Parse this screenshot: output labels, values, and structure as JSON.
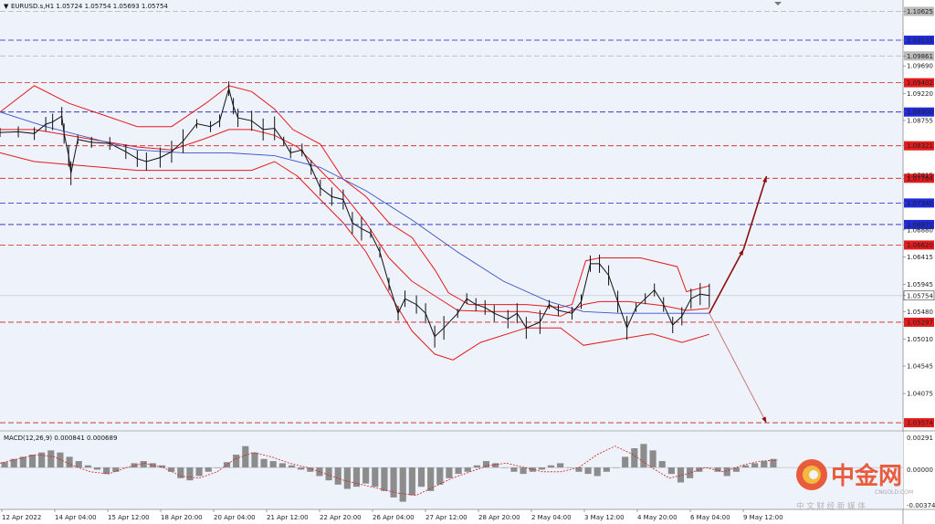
{
  "header": {
    "instrument_line": "EURUSD.s,H1  1.05724 1.05754 1.05693 1.05754"
  },
  "macd_panel": {
    "label": "MACD(12,26,9) 0.000841 0.000689",
    "y_ticks": [
      "0.00291",
      "0.00000",
      "-0.003746"
    ]
  },
  "watermark": {
    "brand": "中金网",
    "domain": "CNGOLD.COM",
    "slogan": "中 文 财 经 新 媒 体"
  },
  "colors": {
    "background": "#eef2fb",
    "bollinger": "#e31b1b",
    "moving_average": "#3a52c8",
    "candles": "#111111",
    "resistance_line": "#d11e1e",
    "support_line": "#1e1ec8",
    "arrow": "#8a0f0f",
    "macd_histogram": "#8c8c8c",
    "macd_signal": "#d11e1e",
    "tag_red": "#e21c1c",
    "tag_blue": "#1f2bd6",
    "tag_gray": "#bbbbbb"
  },
  "chart_data": {
    "type": "line",
    "instrument": "EURUSD.s",
    "timeframe": "H1",
    "ohlc_last": {
      "open": 1.05724,
      "high": 1.05754,
      "low": 1.05693,
      "close": 1.05754
    },
    "x_tick_labels": [
      "12 Apr 2022",
      "14 Apr 04:00",
      "15 Apr 12:00",
      "18 Apr 20:00",
      "20 Apr 04:00",
      "21 Apr 12:00",
      "22 Apr 20:00",
      "26 Apr 04:00",
      "27 Apr 12:00",
      "28 Apr 20:00",
      "2 May 04:00",
      "3 May 12:00",
      "4 May 20:00",
      "6 May 04:00",
      "9 May 12:00"
    ],
    "y_tick_labels": [
      "1.10625",
      "1.10131",
      "1.09861",
      "1.09690",
      "1.09402",
      "1.09220",
      "1.08900",
      "1.08755",
      "1.08321",
      "1.07815",
      "1.07764",
      "1.07340",
      "1.06972",
      "1.06880",
      "1.06620",
      "1.06415",
      "1.05945",
      "1.05754",
      "1.05480",
      "1.05297",
      "1.05010",
      "1.04545",
      "1.04075",
      "1.03574"
    ],
    "ylim": [
      1.0345,
      1.1082
    ],
    "horizontal_levels": [
      {
        "value": 1.10625,
        "kind": "gray"
      },
      {
        "value": 1.10131,
        "kind": "support"
      },
      {
        "value": 1.09861,
        "kind": "gray"
      },
      {
        "value": 1.09402,
        "kind": "resistance"
      },
      {
        "value": 1.089,
        "kind": "support"
      },
      {
        "value": 1.08321,
        "kind": "resistance"
      },
      {
        "value": 1.07764,
        "kind": "resistance"
      },
      {
        "value": 1.0734,
        "kind": "support"
      },
      {
        "value": 1.06972,
        "kind": "support"
      },
      {
        "value": 1.0662,
        "kind": "resistance"
      },
      {
        "value": 1.05754,
        "kind": "current"
      },
      {
        "value": 1.05297,
        "kind": "resistance"
      },
      {
        "value": 1.03574,
        "kind": "resistance"
      }
    ],
    "price_path": [
      [
        0,
        1.0855
      ],
      [
        8,
        1.0856
      ],
      [
        15,
        1.0853
      ],
      [
        20,
        1.0869
      ],
      [
        23,
        1.0873
      ],
      [
        27,
        1.0883
      ],
      [
        28,
        1.0853
      ],
      [
        30,
        1.0815
      ],
      [
        31,
        1.0785
      ],
      [
        34,
        1.0843
      ],
      [
        40,
        1.0838
      ],
      [
        48,
        1.0836
      ],
      [
        55,
        1.0822
      ],
      [
        60,
        1.081
      ],
      [
        64,
        1.0805
      ],
      [
        70,
        1.0812
      ],
      [
        75,
        1.0822
      ],
      [
        80,
        1.084
      ],
      [
        86,
        1.087
      ],
      [
        92,
        1.0865
      ],
      [
        96,
        1.0875
      ],
      [
        100,
        1.093
      ],
      [
        102,
        1.09
      ],
      [
        104,
        1.088
      ],
      [
        110,
        1.0875
      ],
      [
        115,
        1.086
      ],
      [
        120,
        1.0862
      ],
      [
        124,
        1.084
      ],
      [
        127,
        1.082
      ],
      [
        132,
        1.0825
      ],
      [
        136,
        1.0795
      ],
      [
        140,
        1.076
      ],
      [
        145,
        1.0745
      ],
      [
        150,
        1.074
      ],
      [
        154,
        1.07
      ],
      [
        158,
        1.069
      ],
      [
        162,
        1.0682
      ],
      [
        166,
        1.065
      ],
      [
        170,
        1.0595
      ],
      [
        174,
        1.0545
      ],
      [
        177,
        1.057
      ],
      [
        182,
        1.056
      ],
      [
        186,
        1.0545
      ],
      [
        190,
        1.0505
      ],
      [
        194,
        1.052
      ],
      [
        200,
        1.0545
      ],
      [
        204,
        1.057
      ],
      [
        208,
        1.056
      ],
      [
        212,
        1.0555
      ],
      [
        216,
        1.0545
      ],
      [
        222,
        1.0535
      ],
      [
        226,
        1.0545
      ],
      [
        230,
        1.052
      ],
      [
        236,
        1.053
      ],
      [
        240,
        1.056
      ],
      [
        244,
        1.055
      ],
      [
        250,
        1.0545
      ],
      [
        254,
        1.0565
      ],
      [
        258,
        1.063
      ],
      [
        262,
        1.063
      ],
      [
        266,
        1.061
      ],
      [
        270,
        1.0565
      ],
      [
        274,
        1.052
      ],
      [
        278,
        1.0555
      ],
      [
        282,
        1.057
      ],
      [
        286,
        1.0585
      ],
      [
        290,
        1.056
      ],
      [
        294,
        1.0525
      ],
      [
        298,
        1.054
      ],
      [
        302,
        1.057
      ],
      [
        306,
        1.0578
      ],
      [
        310,
        1.05754
      ]
    ],
    "bollinger_upper": [
      [
        0,
        1.089
      ],
      [
        15,
        1.0935
      ],
      [
        30,
        1.0905
      ],
      [
        45,
        1.0885
      ],
      [
        60,
        1.0865
      ],
      [
        75,
        1.0865
      ],
      [
        90,
        1.0905
      ],
      [
        100,
        1.0935
      ],
      [
        110,
        1.0925
      ],
      [
        120,
        1.0895
      ],
      [
        128,
        1.086
      ],
      [
        140,
        1.0835
      ],
      [
        150,
        1.0775
      ],
      [
        160,
        1.0745
      ],
      [
        170,
        1.07
      ],
      [
        180,
        1.0675
      ],
      [
        190,
        1.062
      ],
      [
        196,
        1.058
      ],
      [
        205,
        1.056
      ],
      [
        215,
        1.056
      ],
      [
        230,
        1.056
      ],
      [
        245,
        1.0555
      ],
      [
        250,
        1.056
      ],
      [
        256,
        1.0635
      ],
      [
        262,
        1.064
      ],
      [
        280,
        1.064
      ],
      [
        296,
        1.0625
      ],
      [
        300,
        1.0582
      ],
      [
        310,
        1.0592
      ]
    ],
    "bollinger_middle": [
      [
        0,
        1.086
      ],
      [
        15,
        1.086
      ],
      [
        30,
        1.085
      ],
      [
        45,
        1.084
      ],
      [
        60,
        1.083
      ],
      [
        75,
        1.0825
      ],
      [
        90,
        1.0845
      ],
      [
        100,
        1.086
      ],
      [
        110,
        1.086
      ],
      [
        120,
        1.085
      ],
      [
        130,
        1.083
      ],
      [
        140,
        1.079
      ],
      [
        150,
        1.075
      ],
      [
        160,
        1.07
      ],
      [
        170,
        1.064
      ],
      [
        180,
        1.06
      ],
      [
        190,
        1.0575
      ],
      [
        200,
        1.055
      ],
      [
        215,
        1.0548
      ],
      [
        230,
        1.0548
      ],
      [
        245,
        1.054
      ],
      [
        255,
        1.056
      ],
      [
        262,
        1.0565
      ],
      [
        275,
        1.0565
      ],
      [
        290,
        1.0558
      ],
      [
        300,
        1.055
      ],
      [
        310,
        1.05535
      ]
    ],
    "bollinger_lower": [
      [
        0,
        1.082
      ],
      [
        15,
        1.0805
      ],
      [
        30,
        1.08
      ],
      [
        45,
        1.0795
      ],
      [
        60,
        1.079
      ],
      [
        75,
        1.079
      ],
      [
        90,
        1.079
      ],
      [
        100,
        1.079
      ],
      [
        110,
        1.079
      ],
      [
        120,
        1.0805
      ],
      [
        130,
        1.078
      ],
      [
        140,
        1.074
      ],
      [
        150,
        1.07
      ],
      [
        160,
        1.065
      ],
      [
        170,
        1.058
      ],
      [
        180,
        1.0515
      ],
      [
        190,
        1.0475
      ],
      [
        198,
        1.0465
      ],
      [
        210,
        1.0495
      ],
      [
        230,
        1.052
      ],
      [
        245,
        1.052
      ],
      [
        255,
        1.049
      ],
      [
        270,
        1.05
      ],
      [
        285,
        1.051
      ],
      [
        298,
        1.0495
      ],
      [
        310,
        1.0509
      ]
    ],
    "moving_average": [
      [
        0,
        1.089
      ],
      [
        20,
        1.0865
      ],
      [
        40,
        1.0845
      ],
      [
        60,
        1.0825
      ],
      [
        80,
        1.082
      ],
      [
        100,
        1.082
      ],
      [
        120,
        1.0815
      ],
      [
        140,
        1.0795
      ],
      [
        160,
        1.0755
      ],
      [
        180,
        1.0705
      ],
      [
        200,
        1.065
      ],
      [
        220,
        1.06
      ],
      [
        240,
        1.0565
      ],
      [
        255,
        1.0548
      ],
      [
        270,
        1.0545
      ],
      [
        290,
        1.0545
      ],
      [
        310,
        1.0545
      ]
    ],
    "forecast_arrows": [
      {
        "from": [
          310,
          1.0545
        ],
        "to": [
          325,
          1.0655
        ],
        "style": "thick"
      },
      {
        "from": [
          325,
          1.0655
        ],
        "to": [
          335,
          1.078
        ],
        "style": "thick"
      },
      {
        "from": [
          310,
          1.0545
        ],
        "to": [
          335,
          1.0357
        ],
        "style": "thin"
      }
    ],
    "macd": {
      "label": "MACD(12,26,9)",
      "macd_value": 0.000841,
      "signal_value": 0.000689,
      "ylim": [
        -0.003746,
        0.00291
      ],
      "histogram": [
        0.0005,
        0.0008,
        0.001,
        0.0012,
        0.0014,
        0.0016,
        0.0014,
        0.001,
        0.0006,
        0.0002,
        -0.0002,
        -0.0006,
        -0.0004,
        0.0,
        0.0004,
        0.0006,
        0.0004,
        0.0002,
        -0.0004,
        -0.001,
        -0.0012,
        -0.0008,
        -0.0004,
        0.0,
        0.0005,
        0.0012,
        0.002,
        0.0014,
        0.0008,
        0.0006,
        0.0004,
        0.0002,
        -0.0002,
        -0.0004,
        -0.0008,
        -0.0012,
        -0.0016,
        -0.002,
        -0.0018,
        -0.0015,
        -0.0018,
        -0.0022,
        -0.0028,
        -0.0032,
        -0.0026,
        -0.0018,
        -0.0022,
        -0.0016,
        -0.001,
        -0.0006,
        -0.0004,
        0.0002,
        0.0006,
        0.0004,
        0.0,
        -0.0004,
        -0.0006,
        -0.0004,
        -0.0002,
        0.0002,
        0.0004,
        0.0,
        -0.0004,
        -0.0006,
        -0.0008,
        -0.0004,
        0.0,
        0.001,
        0.0018,
        0.0022,
        0.0016,
        0.0006,
        -0.0006,
        -0.0014,
        -0.001,
        -0.0004,
        0.0,
        -0.0004,
        -0.0008,
        -0.0004,
        0.0002,
        0.0004,
        0.0006,
        0.0008
      ],
      "signal": [
        0.0004,
        0.0008,
        0.0012,
        0.001,
        0.0002,
        -0.0004,
        -0.0006,
        0.0,
        0.0004,
        0.0,
        -0.0008,
        -0.001,
        -0.0004,
        0.0008,
        0.0014,
        0.001,
        0.0004,
        0.0,
        -0.0006,
        -0.0012,
        -0.0016,
        -0.002,
        -0.0024,
        -0.0026,
        -0.0018,
        -0.001,
        -0.0004,
        0.0002,
        0.0004,
        0.0,
        -0.0004,
        -0.0004,
        0.0,
        0.0012,
        0.002,
        0.0012,
        0.0,
        -0.001,
        -0.0006,
        0.0,
        -0.0004,
        0.0002,
        0.0006,
        0.0007
      ]
    }
  }
}
